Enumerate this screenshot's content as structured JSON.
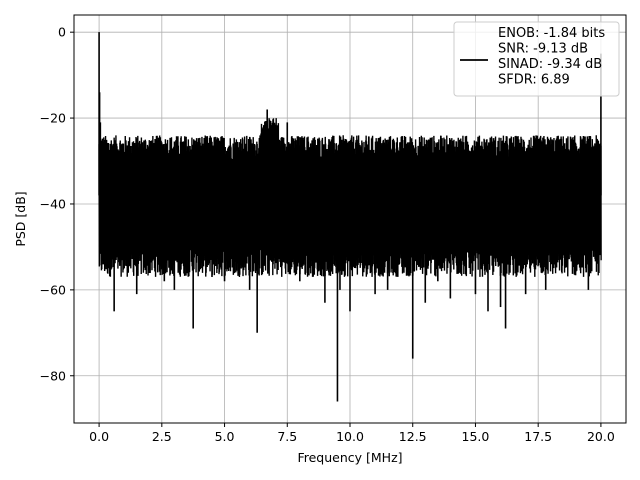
{
  "chart_data": {
    "type": "line",
    "xlabel": "Frequency [MHz]",
    "ylabel": "PSD [dB]",
    "xlim": [
      -1.0,
      21.0
    ],
    "ylim": [
      -91.0,
      4.0
    ],
    "xticks": [
      0.0,
      2.5,
      5.0,
      7.5,
      10.0,
      12.5,
      15.0,
      17.5,
      20.0
    ],
    "xtick_labels": [
      "0.0",
      "2.5",
      "5.0",
      "7.5",
      "10.0",
      "12.5",
      "15.0",
      "17.5",
      "20.0"
    ],
    "yticks": [
      0,
      -20,
      -40,
      -60,
      -80
    ],
    "ytick_labels": [
      "0",
      "−20",
      "−40",
      "−60",
      "−80"
    ],
    "grid": true,
    "legend_position": "top-right",
    "line_color": "#000000",
    "series": [
      {
        "name": "ENOB: -1.84 bits\nSNR: -9.13 dB\nSINAD: -9.34 dB\nSFDR: 6.89",
        "noise_band": {
          "x_range": [
            0.0,
            20.0
          ],
          "upper": -27,
          "lower": -53,
          "typical": -38
        },
        "x": [
          0.0,
          0.02,
          0.05,
          0.08,
          0.1,
          0.3,
          0.5,
          0.6,
          1.0,
          1.5,
          2.0,
          2.6,
          3.0,
          3.5,
          3.75,
          4.5,
          5.0,
          6.0,
          6.3,
          6.6,
          6.7,
          7.0,
          7.5,
          8.0,
          9.0,
          9.5,
          9.6,
          10.0,
          11.0,
          11.5,
          12.5,
          13.0,
          13.5,
          14.0,
          15.0,
          15.5,
          16.0,
          16.2,
          17.0,
          17.8,
          18.9,
          19.5,
          19.98,
          20.0
        ],
        "y": [
          0.0,
          -14,
          -21,
          -27,
          -48,
          -40,
          -55,
          -65,
          -55,
          -61,
          -52,
          -58,
          -60,
          -55,
          -69,
          -57,
          -58,
          -60,
          -70,
          -28,
          -18,
          -25,
          -21,
          -58,
          -63,
          -86,
          -60,
          -65,
          -61,
          -60,
          -76,
          -63,
          -58,
          -62,
          -61,
          -65,
          -64,
          -69,
          -61,
          -60,
          -53,
          -60,
          -40,
          -5
        ]
      }
    ],
    "legend_lines": [
      "ENOB: -1.84 bits",
      "SNR: -9.13 dB",
      "SINAD: -9.34 dB",
      "SFDR: 6.89"
    ]
  }
}
